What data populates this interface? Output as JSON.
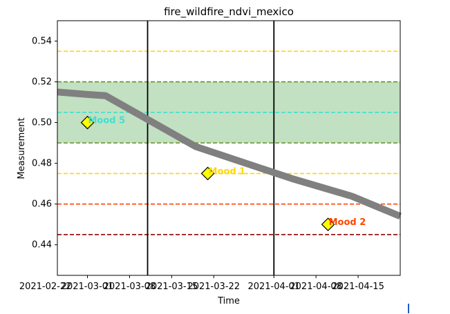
{
  "chart_data": {
    "type": "line",
    "title": "fire_wildfire_ndvi_mexico",
    "xlabel": "Time",
    "ylabel": "Measurement",
    "xlim": [
      "2021-02-24",
      "2021-04-22"
    ],
    "ylim": [
      0.425,
      0.55
    ],
    "grid": false,
    "x_ticks": [
      "2021-02-22",
      "2021-03-01",
      "2021-03-08",
      "2021-03-15",
      "2021-03-22",
      "2021-04-01",
      "2021-04-08",
      "2021-04-15"
    ],
    "y_ticks": [
      "0.44",
      "0.46",
      "0.48",
      "0.50",
      "0.52",
      "0.54"
    ],
    "series": [
      {
        "color": "#808080",
        "x": [
          "2021-02-24",
          "2021-03-01",
          "2021-03-04",
          "2021-03-19",
          "2021-04-04",
          "2021-04-14",
          "2021-04-22"
        ],
        "y": [
          0.515,
          0.5138,
          0.5132,
          0.4882,
          0.4725,
          0.4638,
          0.454
        ]
      }
    ],
    "band": {
      "y0": 0.49,
      "y1": 0.52,
      "fill": "#c2e0c2",
      "edge": "#6b8e23"
    },
    "hlines": [
      {
        "y": 0.535,
        "color": "#ffd700"
      },
      {
        "y": 0.505,
        "color": "#40e0d0"
      },
      {
        "y": 0.475,
        "color": "#ffd700"
      },
      {
        "y": 0.46,
        "color": "#ff4500"
      },
      {
        "y": 0.445,
        "color": "#8b0000"
      }
    ],
    "vlines": [
      "2021-03-11",
      "2021-04-01"
    ],
    "annotations": [
      {
        "x": "2021-03-01",
        "y": 0.5,
        "text": "Mood 5",
        "color": "#40e0d0"
      },
      {
        "x": "2021-03-21",
        "y": 0.475,
        "text": "Mood 1",
        "color": "#ffd700"
      },
      {
        "x": "2021-04-10",
        "y": 0.45,
        "text": "Mood 2",
        "color": "#ff4500"
      }
    ],
    "marker_color": "#ffff00"
  }
}
